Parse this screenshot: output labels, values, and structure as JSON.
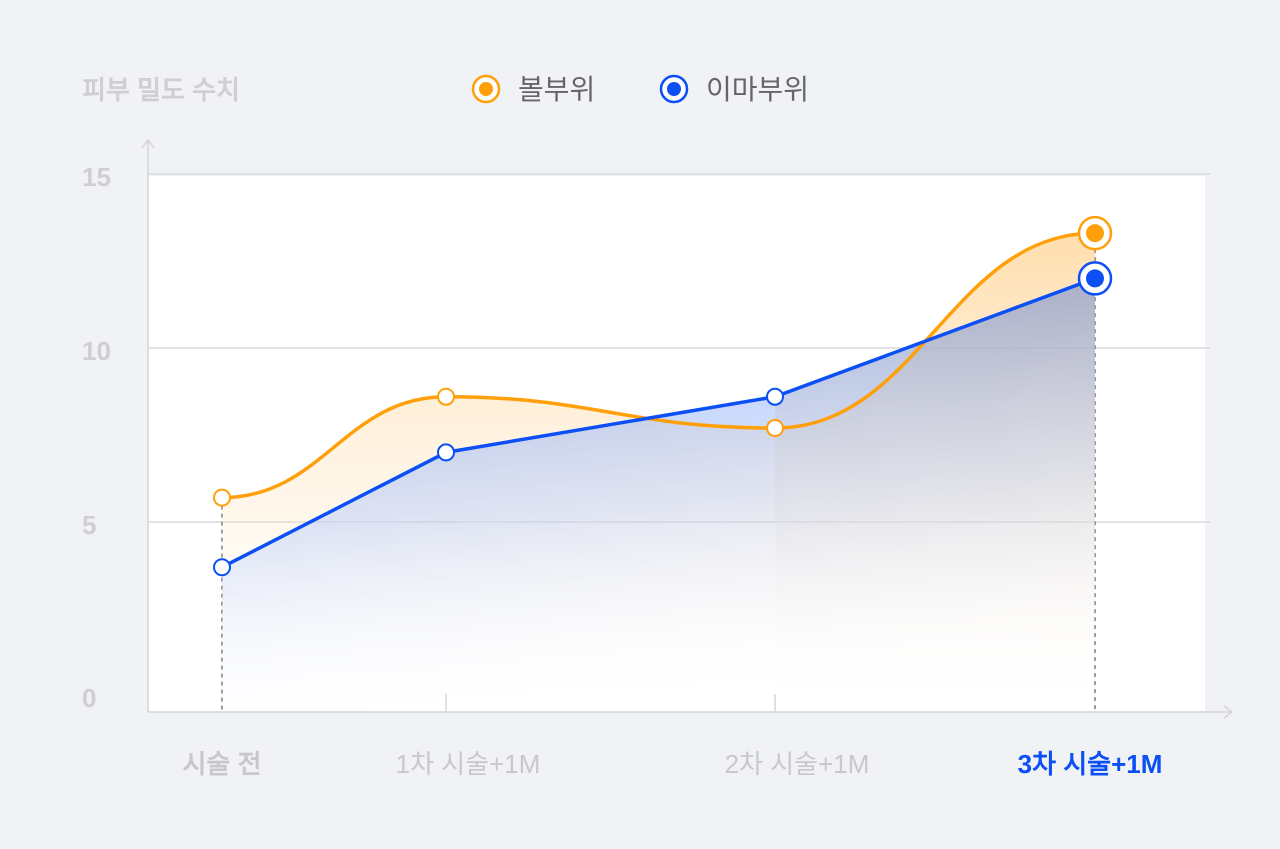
{
  "chart_data": {
    "type": "line",
    "title": "",
    "ylabel": "피부 밀도 수치",
    "xlabel": "",
    "ylim": [
      0,
      15
    ],
    "yticks": [
      "0",
      "5",
      "10",
      "15"
    ],
    "categories": [
      "시술 전",
      "1차 시술+1M",
      "2차 시술+1M",
      "3차 시술+1M"
    ],
    "highlight_category": "3차 시술+1M",
    "legend_position": "top",
    "grid": true,
    "series": [
      {
        "name": "볼부위",
        "color": "#ff9f0a",
        "smooth": true,
        "values": [
          5.7,
          8.6,
          7.7,
          13.3
        ]
      },
      {
        "name": "이마부위",
        "color": "#0b4ff5",
        "smooth": false,
        "values": [
          3.7,
          7.0,
          8.6,
          12.0
        ]
      }
    ]
  }
}
